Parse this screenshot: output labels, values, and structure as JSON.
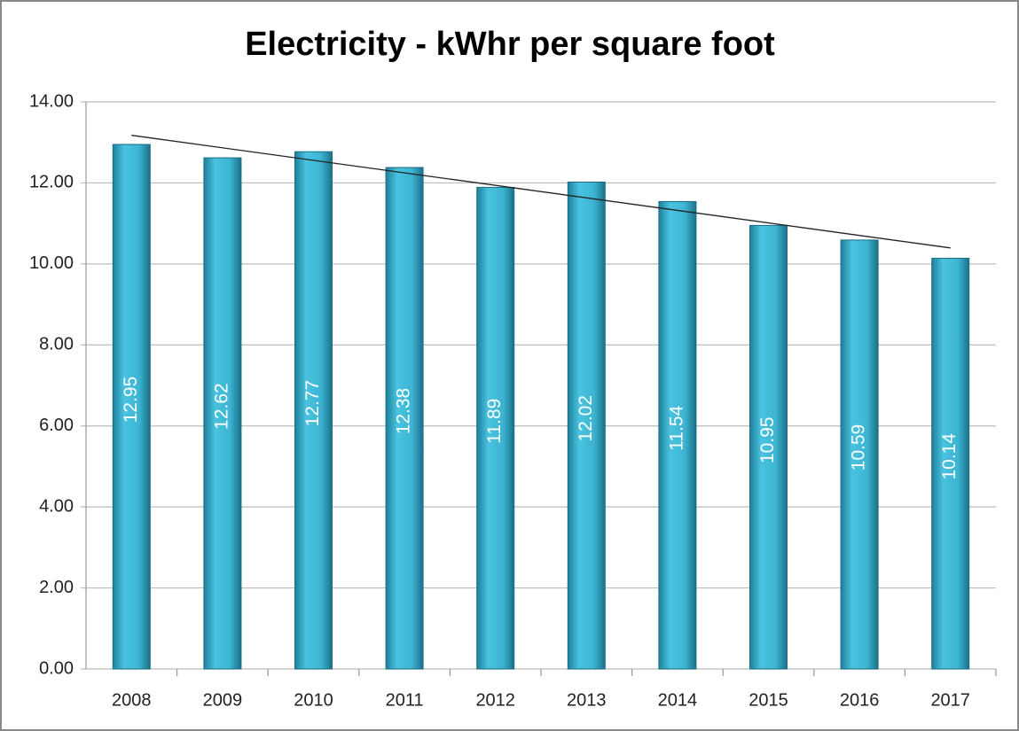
{
  "chart_data": {
    "type": "bar",
    "title": "Electricity - kWhr per square foot",
    "categories": [
      "2008",
      "2009",
      "2010",
      "2011",
      "2012",
      "2013",
      "2014",
      "2015",
      "2016",
      "2017"
    ],
    "values": [
      12.95,
      12.62,
      12.77,
      12.38,
      11.89,
      12.02,
      11.54,
      10.95,
      10.59,
      10.14
    ],
    "color": "#3cb4d2",
    "ylim": [
      0,
      14
    ],
    "yticks": [
      {
        "value": 0,
        "label": "0.00"
      },
      {
        "value": 2,
        "label": "2.00"
      },
      {
        "value": 4,
        "label": "4.00"
      },
      {
        "value": 6,
        "label": "6.00"
      },
      {
        "value": 8,
        "label": "8.00"
      },
      {
        "value": 10,
        "label": "10.00"
      },
      {
        "value": 12,
        "label": "12.00"
      },
      {
        "value": 14,
        "label": "14.00"
      }
    ],
    "grid": true,
    "trendline": "linear"
  }
}
